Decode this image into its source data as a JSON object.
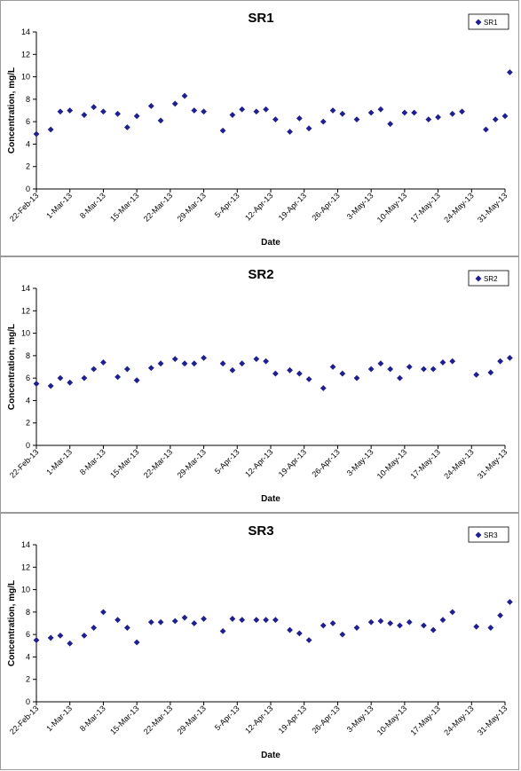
{
  "colors": {
    "marker": "#1f1f8f",
    "axis": "#000000",
    "frame": "#9a9a9a"
  },
  "chart_data": [
    {
      "type": "scatter",
      "title": "SR1",
      "xlabel": "Date",
      "ylabel": "Concentration, mg/L",
      "ylim": [
        0,
        14
      ],
      "yticks": [
        0,
        2,
        4,
        6,
        8,
        10,
        12,
        14
      ],
      "xlim": [
        "2013-02-22",
        "2013-05-31"
      ],
      "xticks": [
        "22-Feb-13",
        "1-Mar-13",
        "8-Mar-13",
        "15-Mar-13",
        "22-Mar-13",
        "29-Mar-13",
        "5-Apr-13",
        "12-Apr-13",
        "19-Apr-13",
        "26-Apr-13",
        "3-May-13",
        "10-May-13",
        "17-May-13",
        "24-May-13",
        "31-May-13"
      ],
      "grid": false,
      "legend": "top-right",
      "series": [
        {
          "name": "SR1",
          "x": [
            "2013-02-22",
            "2013-02-25",
            "2013-02-27",
            "2013-03-01",
            "2013-03-04",
            "2013-03-06",
            "2013-03-08",
            "2013-03-11",
            "2013-03-13",
            "2013-03-15",
            "2013-03-18",
            "2013-03-20",
            "2013-03-23",
            "2013-03-25",
            "2013-03-27",
            "2013-03-29",
            "2013-04-02",
            "2013-04-04",
            "2013-04-06",
            "2013-04-09",
            "2013-04-11",
            "2013-04-13",
            "2013-04-16",
            "2013-04-18",
            "2013-04-20",
            "2013-04-23",
            "2013-04-25",
            "2013-04-27",
            "2013-04-30",
            "2013-05-03",
            "2013-05-05",
            "2013-05-07",
            "2013-05-10",
            "2013-05-12",
            "2013-05-15",
            "2013-05-17",
            "2013-05-20",
            "2013-05-22",
            "2013-05-27",
            "2013-05-29",
            "2013-05-31",
            "2013-06-01"
          ],
          "y": [
            4.9,
            5.3,
            6.9,
            7.0,
            6.6,
            7.3,
            6.9,
            6.7,
            5.5,
            6.5,
            7.4,
            6.1,
            7.6,
            8.3,
            7.0,
            6.9,
            5.2,
            6.6,
            7.1,
            6.9,
            7.1,
            6.2,
            5.1,
            6.3,
            5.4,
            6.0,
            7.0,
            6.7,
            6.2,
            6.8,
            7.1,
            5.8,
            6.8,
            6.8,
            6.2,
            6.4,
            6.7,
            6.9,
            5.3,
            6.2,
            6.5,
            10.4
          ]
        }
      ]
    },
    {
      "type": "scatter",
      "title": "SR2",
      "xlabel": "Date",
      "ylabel": "Concentration, mg/L",
      "ylim": [
        0,
        14
      ],
      "yticks": [
        0,
        2,
        4,
        6,
        8,
        10,
        12,
        14
      ],
      "xlim": [
        "2013-02-22",
        "2013-05-31"
      ],
      "xticks": [
        "22-Feb-13",
        "1-Mar-13",
        "8-Mar-13",
        "15-Mar-13",
        "22-Mar-13",
        "29-Mar-13",
        "5-Apr-13",
        "12-Apr-13",
        "19-Apr-13",
        "26-Apr-13",
        "3-May-13",
        "10-May-13",
        "17-May-13",
        "24-May-13",
        "31-May-13"
      ],
      "grid": false,
      "legend": "top-right",
      "series": [
        {
          "name": "SR2",
          "x": [
            "2013-02-22",
            "2013-02-25",
            "2013-02-27",
            "2013-03-01",
            "2013-03-04",
            "2013-03-06",
            "2013-03-08",
            "2013-03-11",
            "2013-03-13",
            "2013-03-15",
            "2013-03-18",
            "2013-03-20",
            "2013-03-23",
            "2013-03-25",
            "2013-03-27",
            "2013-03-29",
            "2013-04-02",
            "2013-04-04",
            "2013-04-06",
            "2013-04-09",
            "2013-04-11",
            "2013-04-13",
            "2013-04-16",
            "2013-04-18",
            "2013-04-20",
            "2013-04-23",
            "2013-04-25",
            "2013-04-27",
            "2013-04-30",
            "2013-05-03",
            "2013-05-05",
            "2013-05-07",
            "2013-05-09",
            "2013-05-11",
            "2013-05-14",
            "2013-05-16",
            "2013-05-18",
            "2013-05-20",
            "2013-05-25",
            "2013-05-28",
            "2013-05-30",
            "2013-06-01"
          ],
          "y": [
            5.5,
            5.3,
            6.0,
            5.6,
            6.0,
            6.8,
            7.4,
            6.1,
            6.8,
            5.8,
            6.9,
            7.3,
            7.7,
            7.3,
            7.3,
            7.8,
            7.3,
            6.7,
            7.3,
            7.7,
            7.5,
            6.4,
            6.7,
            6.4,
            5.9,
            5.1,
            7.0,
            6.4,
            6.0,
            6.8,
            7.3,
            6.8,
            6.0,
            7.0,
            6.8,
            6.8,
            7.4,
            7.5,
            6.3,
            6.5,
            7.5,
            7.8
          ]
        }
      ]
    },
    {
      "type": "scatter",
      "title": "SR3",
      "xlabel": "Date",
      "ylabel": "Concentration, mg/L",
      "ylim": [
        0,
        14
      ],
      "yticks": [
        0,
        2,
        4,
        6,
        8,
        10,
        12,
        14
      ],
      "xlim": [
        "2013-02-22",
        "2013-05-31"
      ],
      "xticks": [
        "22-Feb-13",
        "1-Mar-13",
        "8-Mar-13",
        "15-Mar-13",
        "22-Mar-13",
        "29-Mar-13",
        "5-Apr-13",
        "12-Apr-13",
        "19-Apr-13",
        "26-Apr-13",
        "3-May-13",
        "10-May-13",
        "17-May-13",
        "24-May-13",
        "31-May-13"
      ],
      "grid": false,
      "legend": "top-right",
      "series": [
        {
          "name": "SR3",
          "x": [
            "2013-02-22",
            "2013-02-25",
            "2013-02-27",
            "2013-03-01",
            "2013-03-04",
            "2013-03-06",
            "2013-03-08",
            "2013-03-11",
            "2013-03-13",
            "2013-03-15",
            "2013-03-18",
            "2013-03-20",
            "2013-03-23",
            "2013-03-25",
            "2013-03-27",
            "2013-03-29",
            "2013-04-02",
            "2013-04-04",
            "2013-04-06",
            "2013-04-09",
            "2013-04-11",
            "2013-04-13",
            "2013-04-16",
            "2013-04-18",
            "2013-04-20",
            "2013-04-23",
            "2013-04-25",
            "2013-04-27",
            "2013-04-30",
            "2013-05-03",
            "2013-05-05",
            "2013-05-07",
            "2013-05-09",
            "2013-05-11",
            "2013-05-14",
            "2013-05-16",
            "2013-05-18",
            "2013-05-20",
            "2013-05-25",
            "2013-05-28",
            "2013-05-30",
            "2013-06-01"
          ],
          "y": [
            5.5,
            5.7,
            5.9,
            5.2,
            5.9,
            6.6,
            8.0,
            7.3,
            6.6,
            5.3,
            7.1,
            7.1,
            7.2,
            7.5,
            7.0,
            7.4,
            6.3,
            7.4,
            7.3,
            7.3,
            7.3,
            7.3,
            6.4,
            6.1,
            5.5,
            6.8,
            7.0,
            6.0,
            6.6,
            7.1,
            7.2,
            7.0,
            6.8,
            7.1,
            6.8,
            6.4,
            7.3,
            8.0,
            6.7,
            6.6,
            7.7,
            8.9
          ]
        }
      ]
    }
  ]
}
